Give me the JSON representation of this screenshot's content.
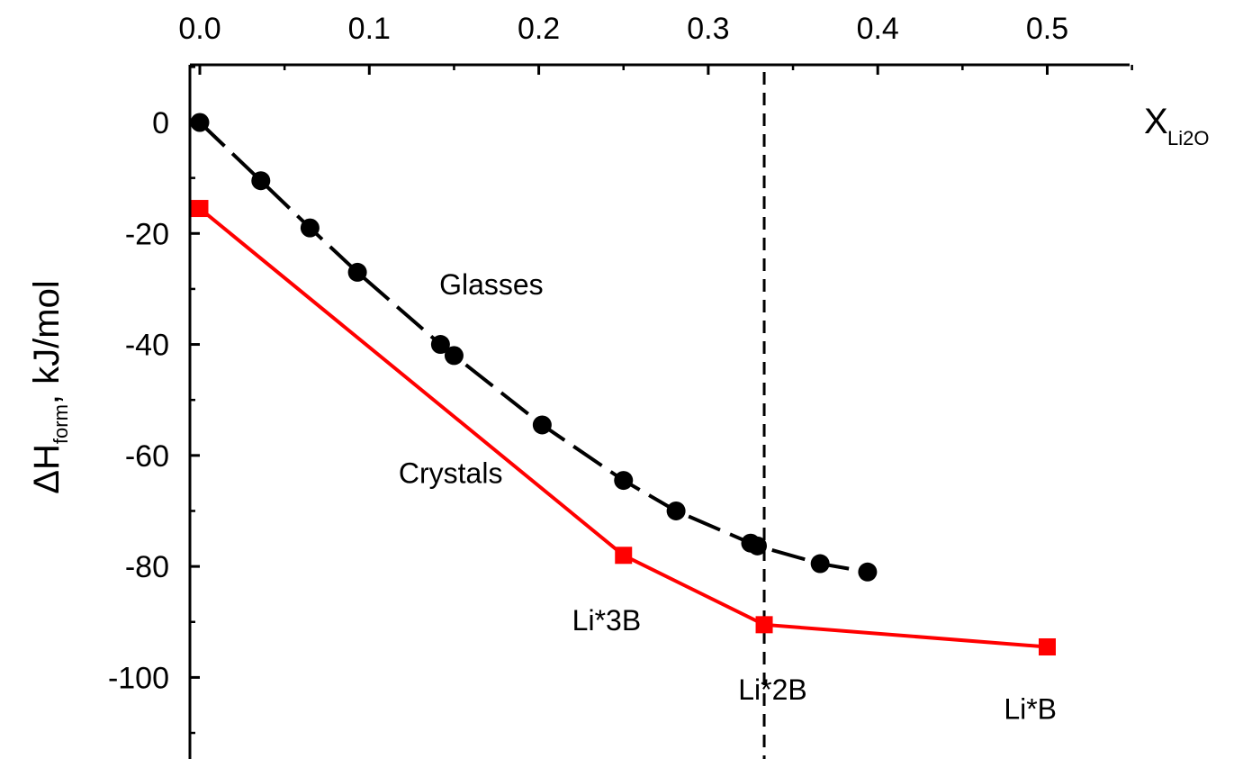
{
  "chart_data": {
    "type": "line",
    "x_axis": {
      "label_main": "X",
      "label_sub": "Li2O",
      "range": [
        0.0,
        0.55
      ],
      "ticks": [
        0.0,
        0.1,
        0.2,
        0.3,
        0.4,
        0.5
      ],
      "tick_labels": [
        "0.0",
        "0.1",
        "0.2",
        "0.3",
        "0.4",
        "0.5"
      ],
      "position": "top"
    },
    "y_axis": {
      "label_prefix": "ΔH",
      "label_sub": "form",
      "label_suffix": ", kJ/mol",
      "range": [
        -113,
        10
      ],
      "ticks": [
        0,
        -20,
        -40,
        -60,
        -80,
        -100
      ],
      "tick_labels": [
        "0",
        "-20",
        "-40",
        "-60",
        "-80",
        "-100"
      ]
    },
    "grid": false,
    "series": [
      {
        "color": "#000000",
        "marker": "circle",
        "line_style": "dashed",
        "points": [
          {
            "x": 0.0,
            "y": 0
          },
          {
            "x": 0.036,
            "y": -10.5
          },
          {
            "x": 0.065,
            "y": -19
          },
          {
            "x": 0.093,
            "y": -27
          },
          {
            "x": 0.142,
            "y": -40
          },
          {
            "x": 0.15,
            "y": -42
          },
          {
            "x": 0.202,
            "y": -54.5
          },
          {
            "x": 0.25,
            "y": -64.5
          },
          {
            "x": 0.281,
            "y": -70
          },
          {
            "x": 0.325,
            "y": -75.8
          },
          {
            "x": 0.329,
            "y": -76.3
          },
          {
            "x": 0.366,
            "y": -79.5
          },
          {
            "x": 0.394,
            "y": -81
          }
        ]
      },
      {
        "color": "#ff0000",
        "marker": "square",
        "line_style": "solid",
        "points": [
          {
            "x": 0.0,
            "y": -15.5
          },
          {
            "x": 0.25,
            "y": -78
          },
          {
            "x": 0.333,
            "y": -90.5
          },
          {
            "x": 0.5,
            "y": -94.5
          }
        ]
      }
    ],
    "reference_line": {
      "x": 0.333,
      "style": "dashed",
      "color": "#000000"
    },
    "annotations": [
      {
        "text": "Glasses",
        "x": 0.172,
        "y": -31
      },
      {
        "text": "Crystals",
        "x": 0.148,
        "y": -65
      },
      {
        "text": "Li*3B",
        "x": 0.24,
        "y": -91.5
      },
      {
        "text": "Li*2B",
        "x": 0.338,
        "y": -104
      },
      {
        "text": "Li*B",
        "x": 0.49,
        "y": -107.5
      }
    ]
  }
}
